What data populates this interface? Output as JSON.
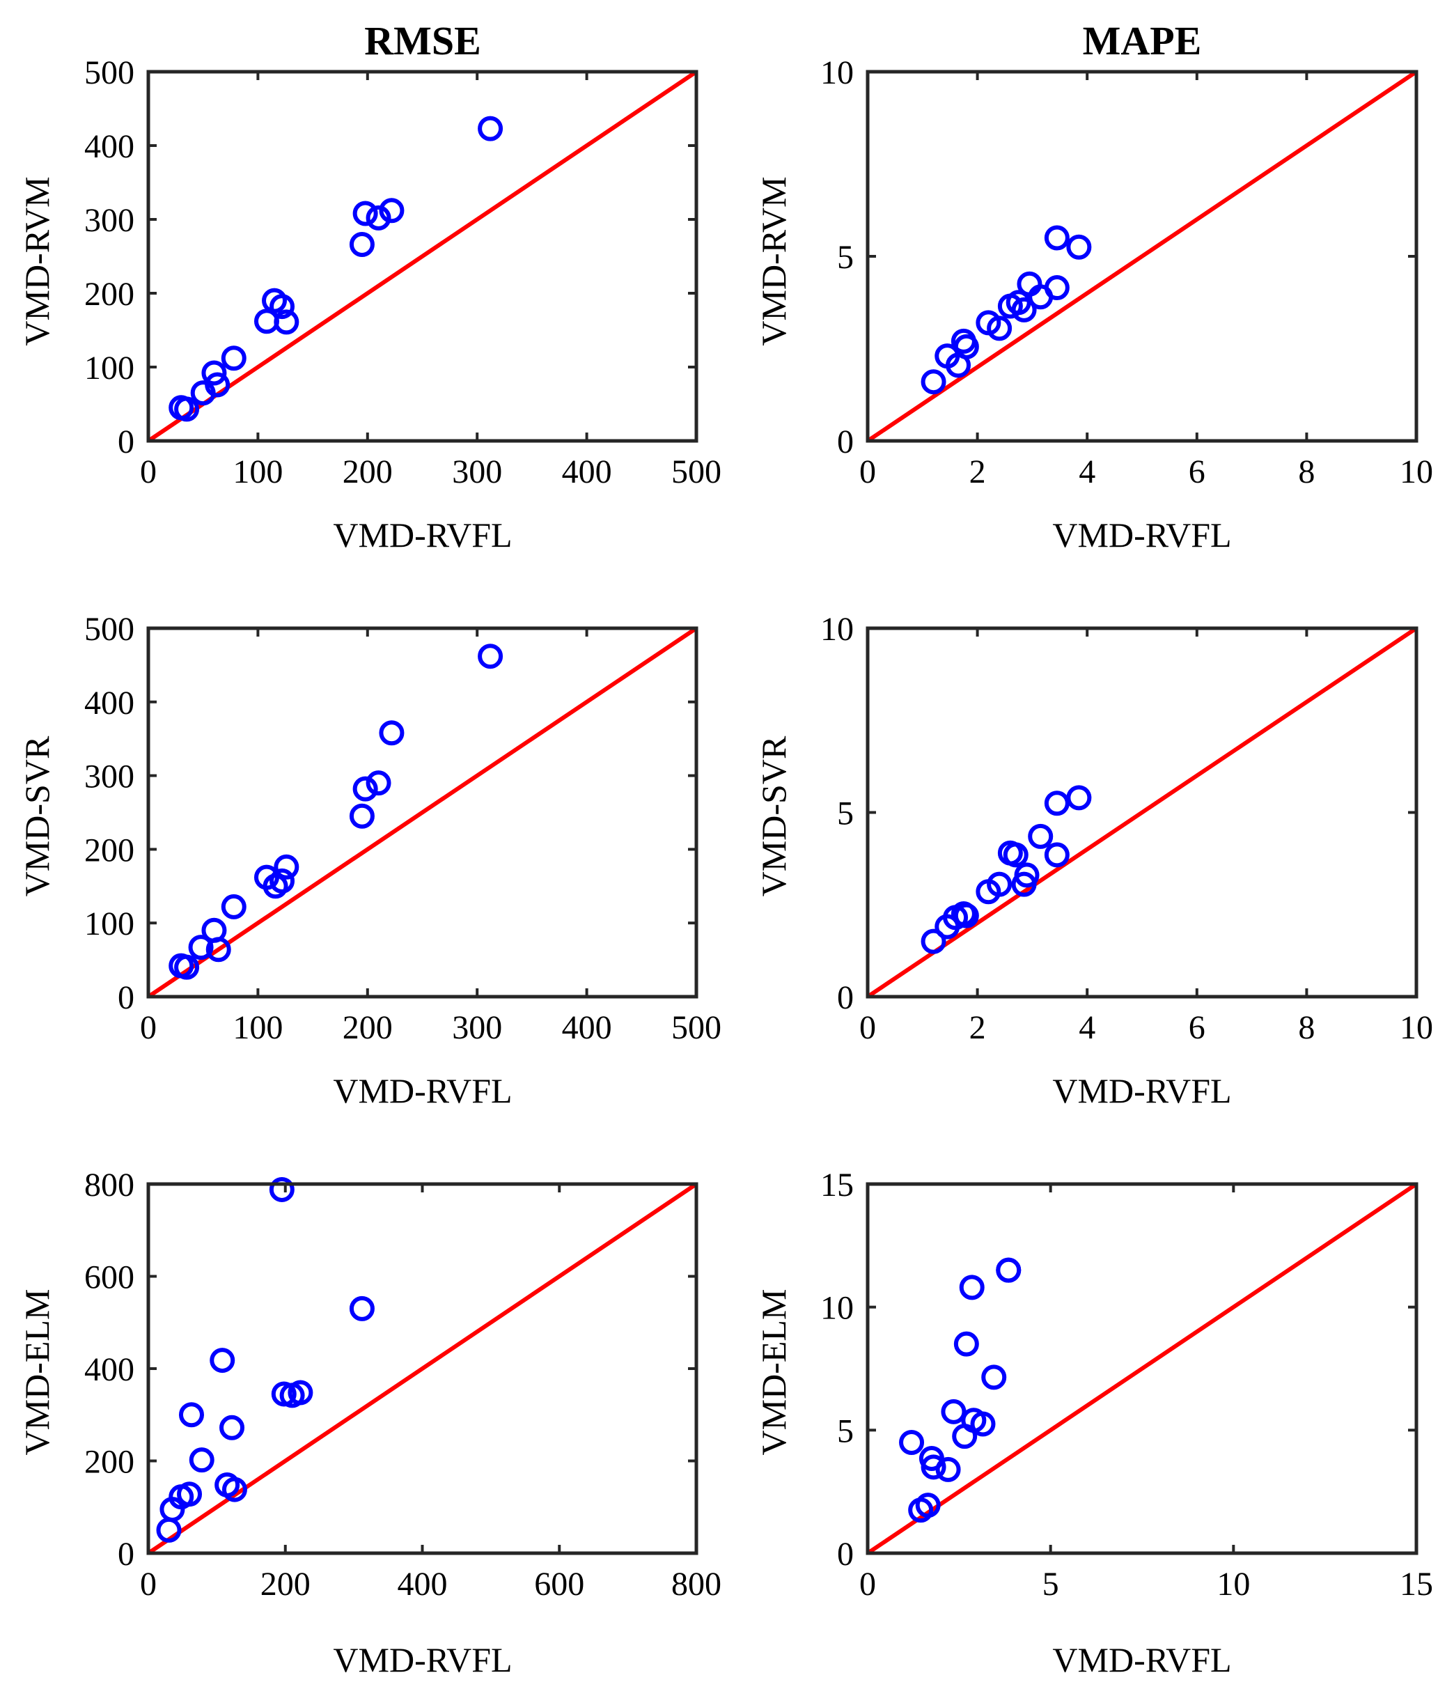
{
  "chart_data": [
    {
      "type": "scatter",
      "title": "RMSE",
      "xlabel": "VMD-RVFL",
      "ylabel": "VMD-RVM",
      "xlim": [
        0,
        500
      ],
      "ylim": [
        0,
        500
      ],
      "xticks": [
        0,
        100,
        200,
        300,
        400,
        500
      ],
      "yticks": [
        0,
        100,
        200,
        300,
        400,
        500
      ],
      "reference_line": "y = x",
      "colors": {
        "points": "#0000ff",
        "line": "#ff0000"
      },
      "points": [
        {
          "x": 30,
          "y": 45
        },
        {
          "x": 35,
          "y": 43
        },
        {
          "x": 50,
          "y": 65
        },
        {
          "x": 60,
          "y": 92
        },
        {
          "x": 63,
          "y": 76
        },
        {
          "x": 78,
          "y": 112
        },
        {
          "x": 108,
          "y": 162
        },
        {
          "x": 115,
          "y": 190
        },
        {
          "x": 122,
          "y": 182
        },
        {
          "x": 126,
          "y": 161
        },
        {
          "x": 195,
          "y": 266
        },
        {
          "x": 198,
          "y": 308
        },
        {
          "x": 210,
          "y": 302
        },
        {
          "x": 222,
          "y": 312
        },
        {
          "x": 312,
          "y": 423
        }
      ]
    },
    {
      "type": "scatter",
      "title": "MAPE",
      "xlabel": "VMD-RVFL",
      "ylabel": "VMD-RVM",
      "xlim": [
        0,
        10
      ],
      "ylim": [
        0,
        10
      ],
      "xticks": [
        0,
        2,
        4,
        6,
        8,
        10
      ],
      "yticks": [
        0,
        5,
        10
      ],
      "reference_line": "y = x",
      "colors": {
        "points": "#0000ff",
        "line": "#ff0000"
      },
      "points": [
        {
          "x": 1.2,
          "y": 1.6
        },
        {
          "x": 1.45,
          "y": 2.3
        },
        {
          "x": 1.65,
          "y": 2.05
        },
        {
          "x": 1.75,
          "y": 2.7
        },
        {
          "x": 1.8,
          "y": 2.55
        },
        {
          "x": 2.2,
          "y": 3.2
        },
        {
          "x": 2.4,
          "y": 3.05
        },
        {
          "x": 2.6,
          "y": 3.65
        },
        {
          "x": 2.75,
          "y": 3.75
        },
        {
          "x": 2.85,
          "y": 3.55
        },
        {
          "x": 2.95,
          "y": 4.25
        },
        {
          "x": 3.15,
          "y": 3.9
        },
        {
          "x": 3.45,
          "y": 4.15
        },
        {
          "x": 3.45,
          "y": 5.5
        },
        {
          "x": 3.85,
          "y": 5.25
        }
      ]
    },
    {
      "type": "scatter",
      "title": "",
      "xlabel": "VMD-RVFL",
      "ylabel": "VMD-SVR",
      "xlim": [
        0,
        500
      ],
      "ylim": [
        0,
        500
      ],
      "xticks": [
        0,
        100,
        200,
        300,
        400,
        500
      ],
      "yticks": [
        0,
        100,
        200,
        300,
        400,
        500
      ],
      "reference_line": "y = x",
      "colors": {
        "points": "#0000ff",
        "line": "#ff0000"
      },
      "points": [
        {
          "x": 30,
          "y": 42
        },
        {
          "x": 35,
          "y": 40
        },
        {
          "x": 48,
          "y": 67
        },
        {
          "x": 60,
          "y": 90
        },
        {
          "x": 64,
          "y": 64
        },
        {
          "x": 78,
          "y": 122
        },
        {
          "x": 108,
          "y": 162
        },
        {
          "x": 116,
          "y": 150
        },
        {
          "x": 122,
          "y": 157
        },
        {
          "x": 126,
          "y": 176
        },
        {
          "x": 195,
          "y": 245
        },
        {
          "x": 198,
          "y": 282
        },
        {
          "x": 210,
          "y": 290
        },
        {
          "x": 222,
          "y": 358
        },
        {
          "x": 312,
          "y": 462
        }
      ]
    },
    {
      "type": "scatter",
      "title": "",
      "xlabel": "VMD-RVFL",
      "ylabel": "VMD-SVR",
      "xlim": [
        0,
        10
      ],
      "ylim": [
        0,
        10
      ],
      "xticks": [
        0,
        2,
        4,
        6,
        8,
        10
      ],
      "yticks": [
        0,
        5,
        10
      ],
      "reference_line": "y = x",
      "colors": {
        "points": "#0000ff",
        "line": "#ff0000"
      },
      "points": [
        {
          "x": 1.2,
          "y": 1.5
        },
        {
          "x": 1.45,
          "y": 1.9
        },
        {
          "x": 1.6,
          "y": 2.15
        },
        {
          "x": 1.75,
          "y": 2.25
        },
        {
          "x": 1.8,
          "y": 2.2
        },
        {
          "x": 2.2,
          "y": 2.85
        },
        {
          "x": 2.4,
          "y": 3.05
        },
        {
          "x": 2.6,
          "y": 3.9
        },
        {
          "x": 2.7,
          "y": 3.85
        },
        {
          "x": 2.85,
          "y": 3.05
        },
        {
          "x": 2.9,
          "y": 3.3
        },
        {
          "x": 3.15,
          "y": 4.35
        },
        {
          "x": 3.45,
          "y": 3.85
        },
        {
          "x": 3.45,
          "y": 5.25
        },
        {
          "x": 3.85,
          "y": 5.4
        }
      ]
    },
    {
      "type": "scatter",
      "title": "",
      "xlabel": "VMD-RVFL",
      "ylabel": "VMD-ELM",
      "xlim": [
        0,
        800
      ],
      "ylim": [
        0,
        800
      ],
      "xticks": [
        0,
        200,
        400,
        600,
        800
      ],
      "yticks": [
        0,
        200,
        400,
        600,
        800
      ],
      "reference_line": "y = x",
      "colors": {
        "points": "#0000ff",
        "line": "#ff0000"
      },
      "points": [
        {
          "x": 30,
          "y": 50
        },
        {
          "x": 35,
          "y": 95
        },
        {
          "x": 48,
          "y": 122
        },
        {
          "x": 60,
          "y": 128
        },
        {
          "x": 63,
          "y": 300
        },
        {
          "x": 78,
          "y": 202
        },
        {
          "x": 108,
          "y": 418
        },
        {
          "x": 115,
          "y": 148
        },
        {
          "x": 122,
          "y": 272
        },
        {
          "x": 126,
          "y": 138
        },
        {
          "x": 195,
          "y": 788
        },
        {
          "x": 198,
          "y": 345
        },
        {
          "x": 210,
          "y": 342
        },
        {
          "x": 222,
          "y": 348
        },
        {
          "x": 312,
          "y": 530
        }
      ]
    },
    {
      "type": "scatter",
      "title": "",
      "xlabel": "VMD-RVFL",
      "ylabel": "VMD-ELM",
      "xlim": [
        0,
        15
      ],
      "ylim": [
        0,
        15
      ],
      "xticks": [
        0,
        5,
        10,
        15
      ],
      "yticks": [
        0,
        5,
        10,
        15
      ],
      "reference_line": "y = x",
      "colors": {
        "points": "#0000ff",
        "line": "#ff0000"
      },
      "points": [
        {
          "x": 1.2,
          "y": 4.5
        },
        {
          "x": 1.45,
          "y": 1.75
        },
        {
          "x": 1.65,
          "y": 1.95
        },
        {
          "x": 1.75,
          "y": 3.85
        },
        {
          "x": 1.8,
          "y": 3.5
        },
        {
          "x": 2.2,
          "y": 3.4
        },
        {
          "x": 2.35,
          "y": 5.75
        },
        {
          "x": 2.65,
          "y": 4.75
        },
        {
          "x": 2.7,
          "y": 8.5
        },
        {
          "x": 2.85,
          "y": 10.8
        },
        {
          "x": 2.9,
          "y": 5.4
        },
        {
          "x": 3.15,
          "y": 5.25
        },
        {
          "x": 3.45,
          "y": 7.15
        },
        {
          "x": 3.85,
          "y": 11.5
        },
        {
          "x": 3.85,
          "y": 11.5
        }
      ]
    }
  ]
}
